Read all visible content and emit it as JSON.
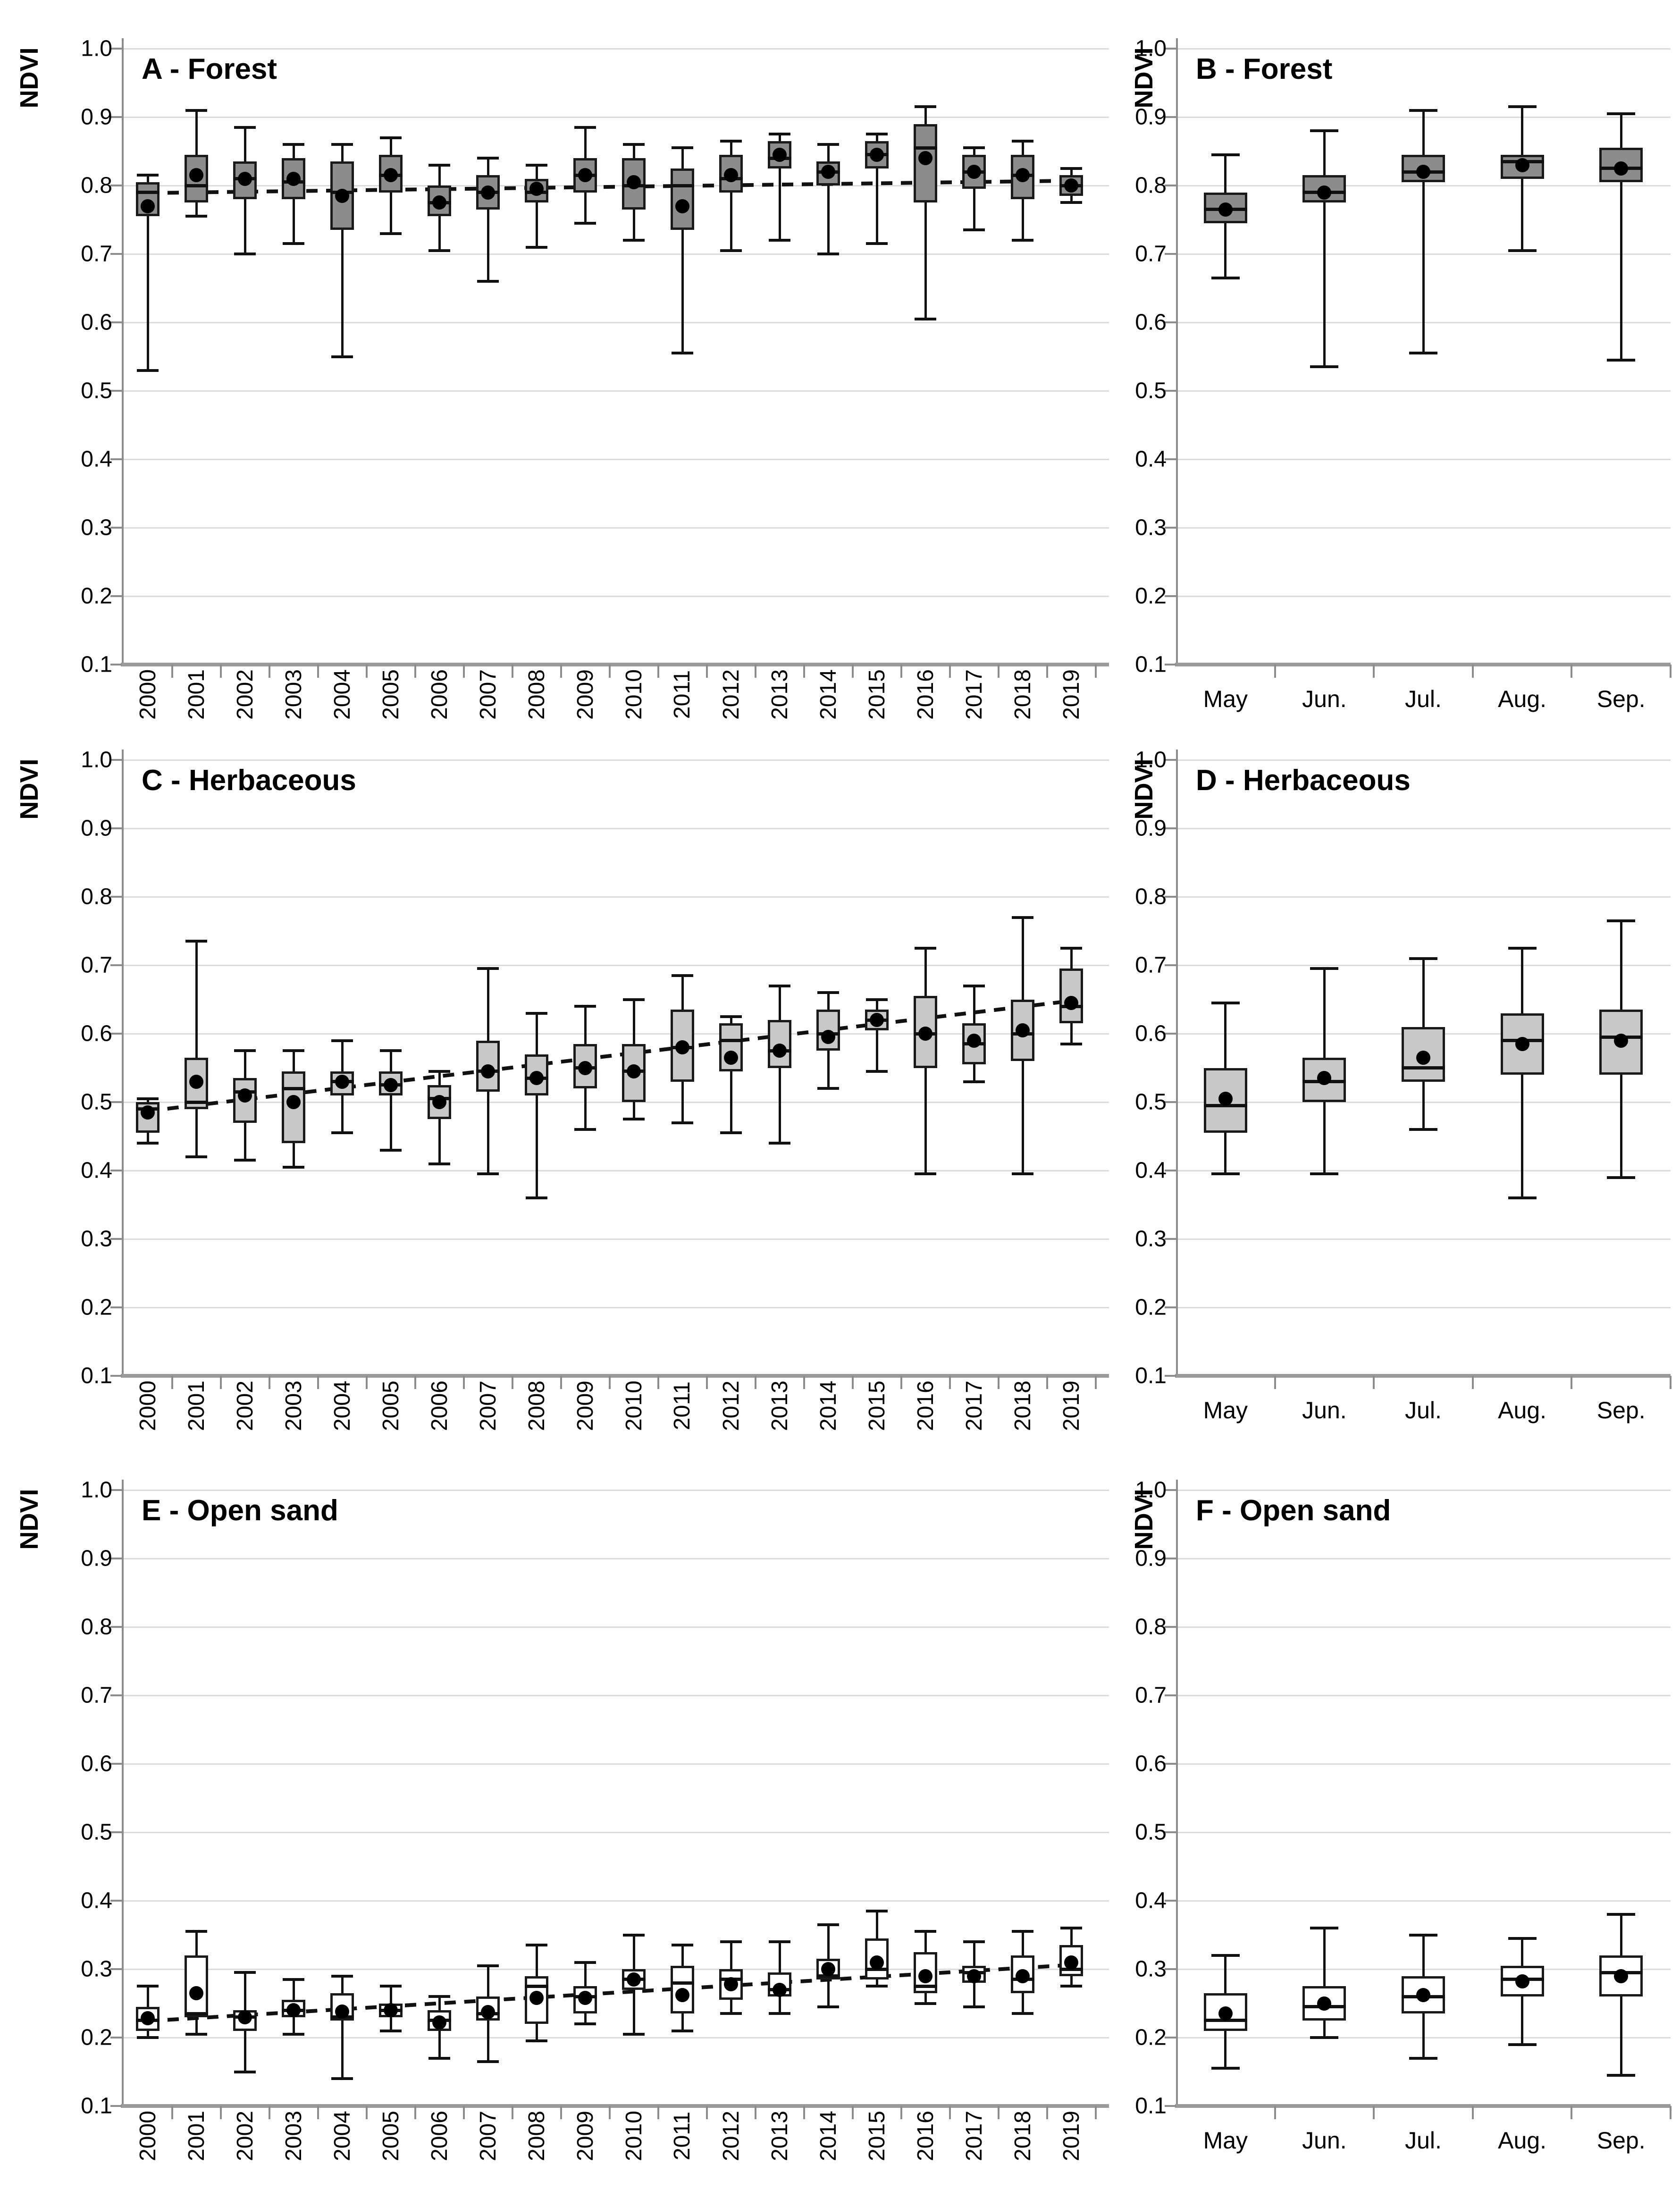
{
  "y_axis": {
    "label": "NDVI",
    "tick_labels": [
      "1.0",
      "0.9",
      "0.8",
      "0.7",
      "0.6",
      "0.5",
      "0.4",
      "0.3",
      "0.2",
      "0.1"
    ],
    "min": 0.1,
    "max": 1.0,
    "grid": true
  },
  "box_value_keys": "lo = lower whisker, q1 = box bottom, med = median, q3 = box top, hi = upper whisker, mean = black dot",
  "colors": {
    "forest_box_fill": "#8c8c8c",
    "herbaceous_box_fill": "#c8c8c8",
    "open_sand_box_fill": "#ffffff",
    "box_border": "#1a1a1a",
    "gridline": "#dcdcdc",
    "axis": "#9a9a9a",
    "trend_line": "#111111",
    "mean_dot": "#000000"
  },
  "chart_data": [
    {
      "id": "A",
      "type": "boxplot",
      "title": "A - Forest",
      "ylabel": "NDVI",
      "x_type": "years",
      "legend": "none",
      "ylim": [
        0.1,
        1.0
      ],
      "box_fill": "#8c8c8c",
      "trend": {
        "style": "dashed",
        "start": 0.789,
        "end": 0.807
      },
      "boxes": [
        {
          "label": "2000",
          "lo": 0.53,
          "q1": 0.755,
          "med": 0.79,
          "q3": 0.805,
          "hi": 0.815,
          "mean": 0.77
        },
        {
          "label": "2001",
          "lo": 0.755,
          "q1": 0.775,
          "med": 0.8,
          "q3": 0.845,
          "hi": 0.91,
          "mean": 0.815
        },
        {
          "label": "2002",
          "lo": 0.7,
          "q1": 0.78,
          "med": 0.81,
          "q3": 0.835,
          "hi": 0.885,
          "mean": 0.81
        },
        {
          "label": "2003",
          "lo": 0.715,
          "q1": 0.78,
          "med": 0.805,
          "q3": 0.84,
          "hi": 0.86,
          "mean": 0.81
        },
        {
          "label": "2004",
          "lo": 0.55,
          "q1": 0.735,
          "med": 0.79,
          "q3": 0.835,
          "hi": 0.86,
          "mean": 0.785
        },
        {
          "label": "2005",
          "lo": 0.73,
          "q1": 0.79,
          "med": 0.815,
          "q3": 0.845,
          "hi": 0.87,
          "mean": 0.815
        },
        {
          "label": "2006",
          "lo": 0.705,
          "q1": 0.755,
          "med": 0.775,
          "q3": 0.8,
          "hi": 0.83,
          "mean": 0.775
        },
        {
          "label": "2007",
          "lo": 0.66,
          "q1": 0.765,
          "med": 0.79,
          "q3": 0.815,
          "hi": 0.84,
          "mean": 0.79
        },
        {
          "label": "2008",
          "lo": 0.71,
          "q1": 0.775,
          "med": 0.79,
          "q3": 0.81,
          "hi": 0.83,
          "mean": 0.795
        },
        {
          "label": "2009",
          "lo": 0.745,
          "q1": 0.79,
          "med": 0.815,
          "q3": 0.84,
          "hi": 0.885,
          "mean": 0.815
        },
        {
          "label": "2010",
          "lo": 0.72,
          "q1": 0.765,
          "med": 0.8,
          "q3": 0.84,
          "hi": 0.86,
          "mean": 0.805
        },
        {
          "label": "2011",
          "lo": 0.555,
          "q1": 0.735,
          "med": 0.8,
          "q3": 0.825,
          "hi": 0.855,
          "mean": 0.77
        },
        {
          "label": "2012",
          "lo": 0.705,
          "q1": 0.79,
          "med": 0.81,
          "q3": 0.845,
          "hi": 0.865,
          "mean": 0.815
        },
        {
          "label": "2013",
          "lo": 0.72,
          "q1": 0.825,
          "med": 0.84,
          "q3": 0.865,
          "hi": 0.875,
          "mean": 0.845
        },
        {
          "label": "2014",
          "lo": 0.7,
          "q1": 0.8,
          "med": 0.82,
          "q3": 0.835,
          "hi": 0.86,
          "mean": 0.82
        },
        {
          "label": "2015",
          "lo": 0.715,
          "q1": 0.825,
          "med": 0.845,
          "q3": 0.865,
          "hi": 0.875,
          "mean": 0.845
        },
        {
          "label": "2016",
          "lo": 0.605,
          "q1": 0.775,
          "med": 0.855,
          "q3": 0.89,
          "hi": 0.915,
          "mean": 0.84
        },
        {
          "label": "2017",
          "lo": 0.735,
          "q1": 0.795,
          "med": 0.82,
          "q3": 0.845,
          "hi": 0.855,
          "mean": 0.82
        },
        {
          "label": "2018",
          "lo": 0.72,
          "q1": 0.78,
          "med": 0.815,
          "q3": 0.845,
          "hi": 0.865,
          "mean": 0.815
        },
        {
          "label": "2019",
          "lo": 0.775,
          "q1": 0.785,
          "med": 0.8,
          "q3": 0.815,
          "hi": 0.825,
          "mean": 0.8
        }
      ]
    },
    {
      "id": "B",
      "type": "boxplot",
      "title": "B - Forest",
      "ylabel": "NDVI",
      "x_type": "months",
      "legend": "none",
      "ylim": [
        0.1,
        1.0
      ],
      "box_fill": "#8c8c8c",
      "boxes": [
        {
          "label": "May",
          "lo": 0.665,
          "q1": 0.745,
          "med": 0.765,
          "q3": 0.79,
          "hi": 0.845,
          "mean": 0.765
        },
        {
          "label": "Jun.",
          "lo": 0.535,
          "q1": 0.775,
          "med": 0.79,
          "q3": 0.815,
          "hi": 0.88,
          "mean": 0.79
        },
        {
          "label": "Jul.",
          "lo": 0.555,
          "q1": 0.805,
          "med": 0.82,
          "q3": 0.845,
          "hi": 0.91,
          "mean": 0.82
        },
        {
          "label": "Aug.",
          "lo": 0.705,
          "q1": 0.81,
          "med": 0.835,
          "q3": 0.845,
          "hi": 0.915,
          "mean": 0.83
        },
        {
          "label": "Sep.",
          "lo": 0.545,
          "q1": 0.805,
          "med": 0.825,
          "q3": 0.855,
          "hi": 0.905,
          "mean": 0.825
        }
      ]
    },
    {
      "id": "C",
      "type": "boxplot",
      "title": "C - Herbaceous",
      "ylabel": "NDVI",
      "x_type": "years",
      "legend": "none",
      "ylim": [
        0.1,
        1.0
      ],
      "box_fill": "#c8c8c8",
      "trend": {
        "style": "dashed",
        "start": 0.487,
        "end": 0.648
      },
      "boxes": [
        {
          "label": "2000",
          "lo": 0.44,
          "q1": 0.455,
          "med": 0.49,
          "q3": 0.5,
          "hi": 0.505,
          "mean": 0.485
        },
        {
          "label": "2001",
          "lo": 0.42,
          "q1": 0.49,
          "med": 0.5,
          "q3": 0.565,
          "hi": 0.735,
          "mean": 0.53
        },
        {
          "label": "2002",
          "lo": 0.415,
          "q1": 0.47,
          "med": 0.515,
          "q3": 0.535,
          "hi": 0.575,
          "mean": 0.51
        },
        {
          "label": "2003",
          "lo": 0.405,
          "q1": 0.44,
          "med": 0.52,
          "q3": 0.545,
          "hi": 0.575,
          "mean": 0.5
        },
        {
          "label": "2004",
          "lo": 0.455,
          "q1": 0.51,
          "med": 0.53,
          "q3": 0.545,
          "hi": 0.59,
          "mean": 0.53
        },
        {
          "label": "2005",
          "lo": 0.43,
          "q1": 0.51,
          "med": 0.525,
          "q3": 0.545,
          "hi": 0.575,
          "mean": 0.525
        },
        {
          "label": "2006",
          "lo": 0.41,
          "q1": 0.475,
          "med": 0.505,
          "q3": 0.525,
          "hi": 0.545,
          "mean": 0.5
        },
        {
          "label": "2007",
          "lo": 0.395,
          "q1": 0.515,
          "med": 0.545,
          "q3": 0.59,
          "hi": 0.695,
          "mean": 0.545
        },
        {
          "label": "2008",
          "lo": 0.36,
          "q1": 0.51,
          "med": 0.535,
          "q3": 0.57,
          "hi": 0.63,
          "mean": 0.535
        },
        {
          "label": "2009",
          "lo": 0.46,
          "q1": 0.52,
          "med": 0.55,
          "q3": 0.585,
          "hi": 0.64,
          "mean": 0.55
        },
        {
          "label": "2010",
          "lo": 0.475,
          "q1": 0.5,
          "med": 0.545,
          "q3": 0.585,
          "hi": 0.65,
          "mean": 0.545
        },
        {
          "label": "2011",
          "lo": 0.47,
          "q1": 0.53,
          "med": 0.58,
          "q3": 0.635,
          "hi": 0.685,
          "mean": 0.58
        },
        {
          "label": "2012",
          "lo": 0.455,
          "q1": 0.545,
          "med": 0.59,
          "q3": 0.615,
          "hi": 0.625,
          "mean": 0.565
        },
        {
          "label": "2013",
          "lo": 0.44,
          "q1": 0.55,
          "med": 0.575,
          "q3": 0.62,
          "hi": 0.67,
          "mean": 0.575
        },
        {
          "label": "2014",
          "lo": 0.52,
          "q1": 0.575,
          "med": 0.6,
          "q3": 0.635,
          "hi": 0.66,
          "mean": 0.595
        },
        {
          "label": "2015",
          "lo": 0.545,
          "q1": 0.605,
          "med": 0.62,
          "q3": 0.635,
          "hi": 0.65,
          "mean": 0.62
        },
        {
          "label": "2016",
          "lo": 0.395,
          "q1": 0.55,
          "med": 0.6,
          "q3": 0.655,
          "hi": 0.725,
          "mean": 0.6
        },
        {
          "label": "2017",
          "lo": 0.53,
          "q1": 0.555,
          "med": 0.585,
          "q3": 0.615,
          "hi": 0.67,
          "mean": 0.59
        },
        {
          "label": "2018",
          "lo": 0.395,
          "q1": 0.56,
          "med": 0.6,
          "q3": 0.65,
          "hi": 0.77,
          "mean": 0.605
        },
        {
          "label": "2019",
          "lo": 0.585,
          "q1": 0.615,
          "med": 0.64,
          "q3": 0.695,
          "hi": 0.725,
          "mean": 0.645
        }
      ]
    },
    {
      "id": "D",
      "type": "boxplot",
      "title": "D - Herbaceous",
      "ylabel": "NDVI",
      "x_type": "months",
      "legend": "none",
      "ylim": [
        0.1,
        1.0
      ],
      "box_fill": "#c8c8c8",
      "boxes": [
        {
          "label": "May",
          "lo": 0.395,
          "q1": 0.455,
          "med": 0.495,
          "q3": 0.55,
          "hi": 0.645,
          "mean": 0.505
        },
        {
          "label": "Jun.",
          "lo": 0.395,
          "q1": 0.5,
          "med": 0.53,
          "q3": 0.565,
          "hi": 0.695,
          "mean": 0.535
        },
        {
          "label": "Jul.",
          "lo": 0.46,
          "q1": 0.53,
          "med": 0.55,
          "q3": 0.61,
          "hi": 0.71,
          "mean": 0.565
        },
        {
          "label": "Aug.",
          "lo": 0.36,
          "q1": 0.54,
          "med": 0.59,
          "q3": 0.63,
          "hi": 0.725,
          "mean": 0.585
        },
        {
          "label": "Sep.",
          "lo": 0.39,
          "q1": 0.54,
          "med": 0.595,
          "q3": 0.635,
          "hi": 0.765,
          "mean": 0.59
        }
      ]
    },
    {
      "id": "E",
      "type": "boxplot",
      "title": "E - Open sand",
      "ylabel": "NDVI",
      "x_type": "years",
      "legend": "none",
      "ylim": [
        0.1,
        1.0
      ],
      "box_fill": "#ffffff",
      "trend": {
        "style": "dashed",
        "start": 0.224,
        "end": 0.306
      },
      "boxes": [
        {
          "label": "2000",
          "lo": 0.2,
          "q1": 0.21,
          "med": 0.225,
          "q3": 0.245,
          "hi": 0.275,
          "mean": 0.228
        },
        {
          "label": "2001",
          "lo": 0.205,
          "q1": 0.23,
          "med": 0.235,
          "q3": 0.32,
          "hi": 0.355,
          "mean": 0.265
        },
        {
          "label": "2002",
          "lo": 0.15,
          "q1": 0.21,
          "med": 0.23,
          "q3": 0.24,
          "hi": 0.295,
          "mean": 0.23
        },
        {
          "label": "2003",
          "lo": 0.205,
          "q1": 0.23,
          "med": 0.24,
          "q3": 0.255,
          "hi": 0.285,
          "mean": 0.24
        },
        {
          "label": "2004",
          "lo": 0.14,
          "q1": 0.225,
          "med": 0.23,
          "q3": 0.265,
          "hi": 0.29,
          "mean": 0.238
        },
        {
          "label": "2005",
          "lo": 0.21,
          "q1": 0.23,
          "med": 0.24,
          "q3": 0.25,
          "hi": 0.275,
          "mean": 0.24
        },
        {
          "label": "2006",
          "lo": 0.17,
          "q1": 0.21,
          "med": 0.225,
          "q3": 0.24,
          "hi": 0.26,
          "mean": 0.222
        },
        {
          "label": "2007",
          "lo": 0.165,
          "q1": 0.225,
          "med": 0.235,
          "q3": 0.26,
          "hi": 0.305,
          "mean": 0.237
        },
        {
          "label": "2008",
          "lo": 0.195,
          "q1": 0.22,
          "med": 0.275,
          "q3": 0.29,
          "hi": 0.335,
          "mean": 0.258
        },
        {
          "label": "2009",
          "lo": 0.22,
          "q1": 0.235,
          "med": 0.26,
          "q3": 0.275,
          "hi": 0.31,
          "mean": 0.258
        },
        {
          "label": "2010",
          "lo": 0.205,
          "q1": 0.27,
          "med": 0.285,
          "q3": 0.3,
          "hi": 0.35,
          "mean": 0.285
        },
        {
          "label": "2011",
          "lo": 0.21,
          "q1": 0.235,
          "med": 0.28,
          "q3": 0.305,
          "hi": 0.335,
          "mean": 0.262
        },
        {
          "label": "2012",
          "lo": 0.235,
          "q1": 0.255,
          "med": 0.285,
          "q3": 0.3,
          "hi": 0.34,
          "mean": 0.278
        },
        {
          "label": "2013",
          "lo": 0.235,
          "q1": 0.26,
          "med": 0.27,
          "q3": 0.295,
          "hi": 0.34,
          "mean": 0.27
        },
        {
          "label": "2014",
          "lo": 0.245,
          "q1": 0.285,
          "med": 0.29,
          "q3": 0.315,
          "hi": 0.365,
          "mean": 0.3
        },
        {
          "label": "2015",
          "lo": 0.275,
          "q1": 0.285,
          "med": 0.3,
          "q3": 0.345,
          "hi": 0.385,
          "mean": 0.31
        },
        {
          "label": "2016",
          "lo": 0.25,
          "q1": 0.265,
          "med": 0.275,
          "q3": 0.325,
          "hi": 0.355,
          "mean": 0.29
        },
        {
          "label": "2017",
          "lo": 0.245,
          "q1": 0.28,
          "med": 0.295,
          "q3": 0.305,
          "hi": 0.34,
          "mean": 0.29
        },
        {
          "label": "2018",
          "lo": 0.235,
          "q1": 0.265,
          "med": 0.285,
          "q3": 0.32,
          "hi": 0.355,
          "mean": 0.29
        },
        {
          "label": "2019",
          "lo": 0.275,
          "q1": 0.29,
          "med": 0.3,
          "q3": 0.335,
          "hi": 0.36,
          "mean": 0.31
        }
      ]
    },
    {
      "id": "F",
      "type": "boxplot",
      "title": "F - Open sand",
      "ylabel": "NDVI",
      "x_type": "months",
      "legend": "none",
      "ylim": [
        0.1,
        1.0
      ],
      "box_fill": "#ffffff",
      "boxes": [
        {
          "label": "May",
          "lo": 0.155,
          "q1": 0.21,
          "med": 0.225,
          "q3": 0.265,
          "hi": 0.32,
          "mean": 0.235
        },
        {
          "label": "Jun.",
          "lo": 0.2,
          "q1": 0.225,
          "med": 0.245,
          "q3": 0.275,
          "hi": 0.36,
          "mean": 0.25
        },
        {
          "label": "Jul.",
          "lo": 0.17,
          "q1": 0.235,
          "med": 0.26,
          "q3": 0.29,
          "hi": 0.35,
          "mean": 0.262
        },
        {
          "label": "Aug.",
          "lo": 0.19,
          "q1": 0.26,
          "med": 0.285,
          "q3": 0.305,
          "hi": 0.345,
          "mean": 0.282
        },
        {
          "label": "Sep.",
          "lo": 0.145,
          "q1": 0.26,
          "med": 0.295,
          "q3": 0.32,
          "hi": 0.38,
          "mean": 0.29
        }
      ]
    }
  ]
}
